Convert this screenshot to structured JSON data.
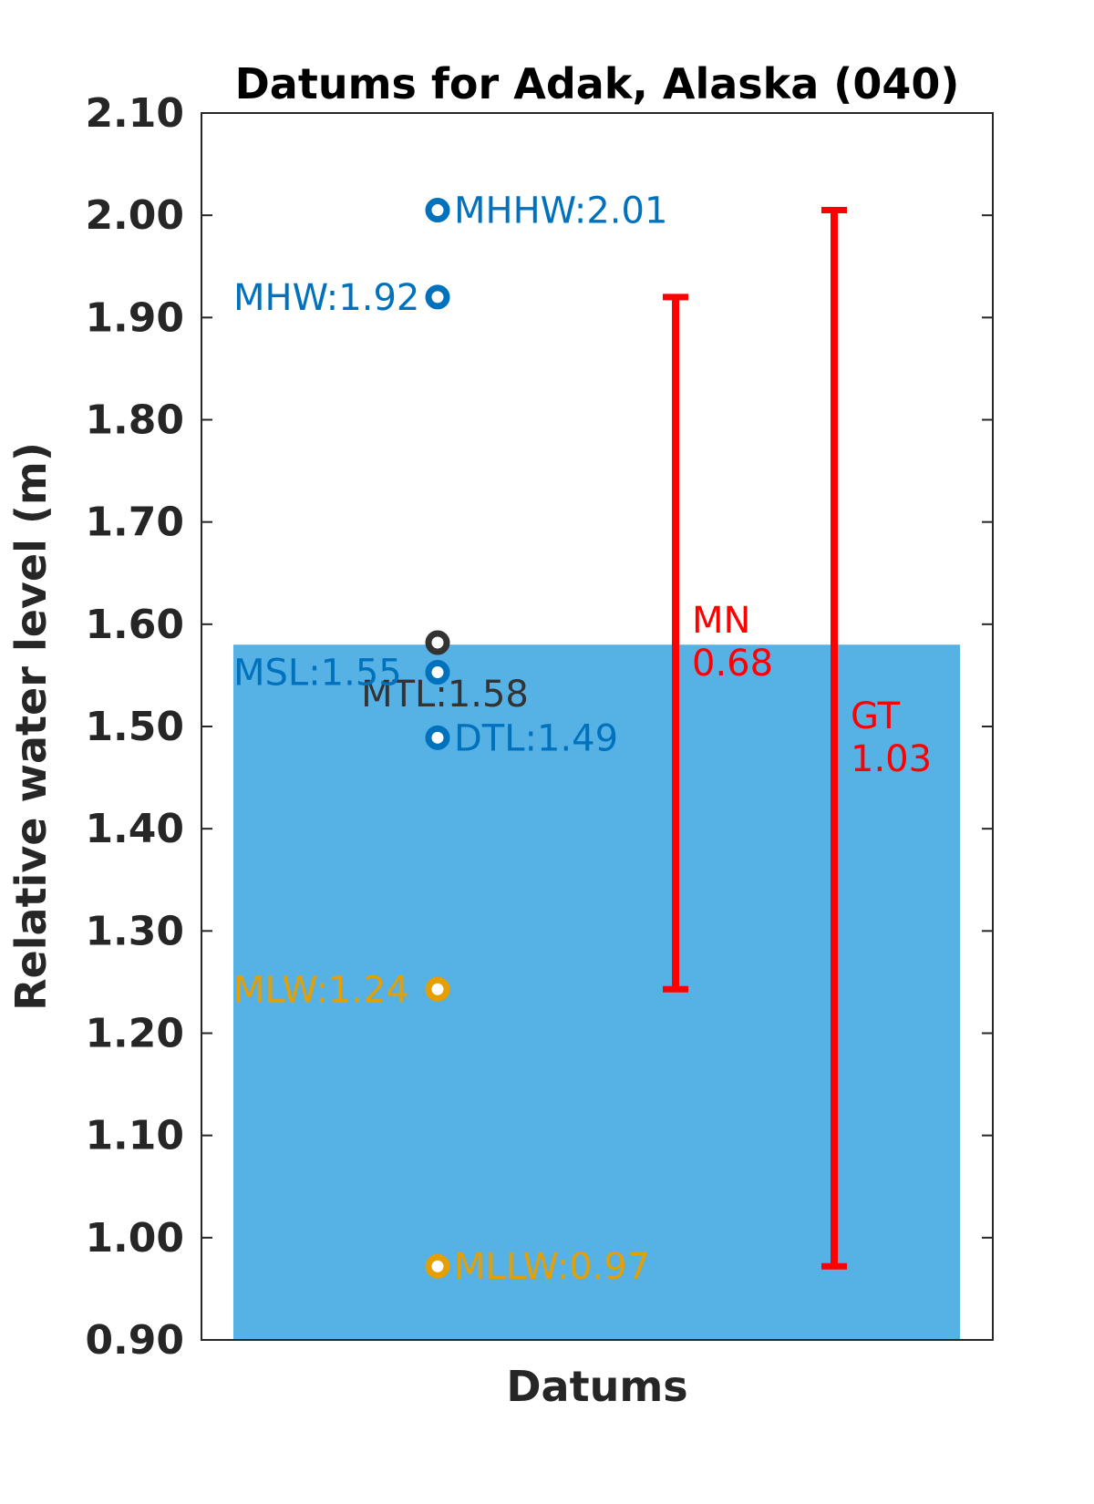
{
  "chart_data": {
    "type": "scatter",
    "title": "Datums for Adak, Alaska (040)",
    "xlabel": "Datums",
    "ylabel": "Relative water level (m)",
    "ylim": [
      0.9,
      2.1
    ],
    "yticks": [
      "0.90",
      "1.00",
      "1.10",
      "1.20",
      "1.30",
      "1.40",
      "1.50",
      "1.60",
      "1.70",
      "1.80",
      "1.90",
      "2.00",
      "2.10"
    ],
    "grid": false,
    "water_level_fill": {
      "value": 1.58,
      "color": "#56B1E5"
    },
    "datums": [
      {
        "name": "MHHW",
        "label": "MHHW:2.01",
        "value": 2.005,
        "color": "#0072BD",
        "label_side": "right"
      },
      {
        "name": "MHW",
        "label": "MHW:1.92",
        "value": 1.92,
        "color": "#0072BD",
        "label_side": "left"
      },
      {
        "name": "MTL",
        "label": "MTL:1.58",
        "value": 1.582,
        "color": "#333333",
        "label_side": "below"
      },
      {
        "name": "MSL",
        "label": "MSL:1.55",
        "value": 1.553,
        "color": "#0072BD",
        "label_side": "left"
      },
      {
        "name": "DTL",
        "label": "DTL:1.49",
        "value": 1.489,
        "color": "#0072BD",
        "label_side": "right"
      },
      {
        "name": "MLW",
        "label": "MLW:1.24",
        "value": 1.243,
        "color": "#E69F00",
        "label_side": "left"
      },
      {
        "name": "MLLW",
        "label": "MLLW:0.97",
        "value": 0.972,
        "color": "#E69F00",
        "label_side": "right"
      }
    ],
    "ranges": [
      {
        "name": "MN",
        "label_line1": "MN",
        "label_line2": "0.68",
        "low": 1.243,
        "high": 1.92,
        "color": "#FF0000"
      },
      {
        "name": "GT",
        "label_line1": "GT",
        "label_line2": "1.03",
        "low": 0.972,
        "high": 2.005,
        "color": "#FF0000"
      }
    ]
  }
}
